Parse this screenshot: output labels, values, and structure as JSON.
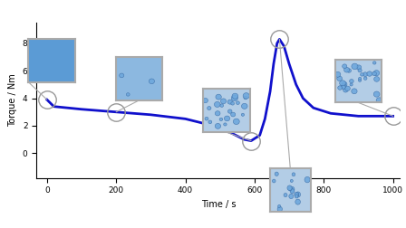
{
  "chart_data": {
    "type": "line",
    "x_label": "Time / s",
    "y_label": "Torque / Nm",
    "x": [
      0,
      20,
      100,
      200,
      300,
      400,
      480,
      530,
      570,
      590,
      615,
      630,
      645,
      655,
      665,
      672,
      685,
      700,
      720,
      740,
      770,
      820,
      900,
      1000
    ],
    "values": [
      3.9,
      3.4,
      3.2,
      3.0,
      2.8,
      2.5,
      2.0,
      1.5,
      1.0,
      0.9,
      1.3,
      2.5,
      4.5,
      6.5,
      8.0,
      8.3,
      7.8,
      6.5,
      5.0,
      4.0,
      3.3,
      2.9,
      2.7,
      2.7
    ],
    "color": "#1010cc",
    "xlim": [
      -30,
      1020
    ],
    "ylim": [
      -1.8,
      9.5
    ],
    "xticks": [
      0,
      200,
      400,
      600,
      800,
      1000
    ],
    "yticks": [
      0,
      2,
      4,
      6,
      8
    ],
    "grid": false
  }
}
